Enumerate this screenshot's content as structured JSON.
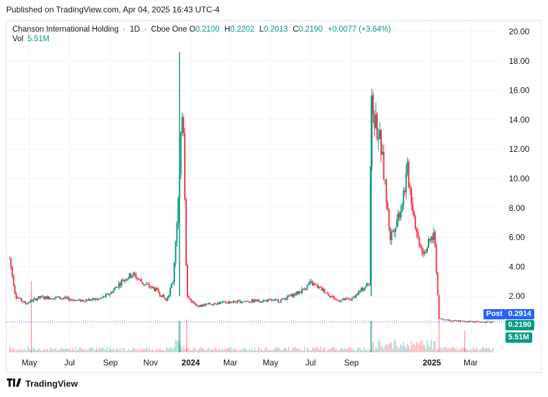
{
  "header": {
    "published": "Published on TradingView.com, Apr 04, 2025 16:43 UTC-4"
  },
  "legend": {
    "symbol": "Chanson International Holding",
    "interval": "1D",
    "exchange": "Cboe One",
    "o_label": "O",
    "o": "0.2100",
    "h_label": "H",
    "h": "0.2202",
    "l_label": "L",
    "l": "0.2013",
    "c_label": "C",
    "c": "0.2190",
    "change": "+0.0077 (+3.64%)",
    "vol_label": "Vol",
    "vol": "5.51M"
  },
  "tags": {
    "post_label": "Post",
    "post_price": "0.2914",
    "last_price": "0.2190",
    "volume": "5.51M"
  },
  "footer": {
    "brand": "TradingView",
    "logo": "tradingview-logo-icon"
  },
  "colors": {
    "up": "#089981",
    "down": "#f23645",
    "post": "#2962ff",
    "grid": "#f0f3fa",
    "text": "#131722"
  },
  "chart_data": {
    "type": "candlestick",
    "title": "Chanson International Holding · 1D · Cboe One",
    "y_ticks": [
      "2.00",
      "4.00",
      "6.00",
      "8.00",
      "10.00",
      "12.00",
      "14.00",
      "16.00",
      "18.00",
      "20.00"
    ],
    "x_ticks": [
      "May",
      "Jul",
      "Sep",
      "Nov",
      "2024",
      "Mar",
      "May",
      "Jul",
      "Sep",
      "2025",
      "Mar"
    ],
    "ylim": [
      0,
      20.5
    ],
    "grid": true,
    "price_path": [
      [
        "2023-04-03",
        4.0
      ],
      [
        "2023-04-10",
        2.0
      ],
      [
        "2023-04-25",
        1.5
      ],
      [
        "2023-05-15",
        1.9
      ],
      [
        "2023-06-15",
        1.9
      ],
      [
        "2023-07-15",
        1.7
      ],
      [
        "2023-08-15",
        1.8
      ],
      [
        "2023-09-01",
        2.2
      ],
      [
        "2023-09-20",
        3.1
      ],
      [
        "2023-10-05",
        3.5
      ],
      [
        "2023-10-20",
        2.9
      ],
      [
        "2023-11-10",
        2.4
      ],
      [
        "2023-11-25",
        1.7
      ],
      [
        "2023-12-05",
        3.0
      ],
      [
        "2023-12-15",
        10.0
      ],
      [
        "2023-12-20",
        16.0
      ],
      [
        "2023-12-26",
        2.0
      ],
      [
        "2024-01-10",
        1.3
      ],
      [
        "2024-02-01",
        1.5
      ],
      [
        "2024-03-01",
        1.6
      ],
      [
        "2024-04-15",
        1.7
      ],
      [
        "2024-05-15",
        1.7
      ],
      [
        "2024-06-15",
        2.3
      ],
      [
        "2024-07-01",
        2.9
      ],
      [
        "2024-07-20",
        2.4
      ],
      [
        "2024-08-10",
        1.7
      ],
      [
        "2024-09-01",
        1.8
      ],
      [
        "2024-09-20",
        2.6
      ],
      [
        "2024-09-28",
        2.9
      ],
      [
        "2024-10-01",
        15.0
      ],
      [
        "2024-10-15",
        12.5
      ],
      [
        "2024-10-30",
        6.0
      ],
      [
        "2024-11-15",
        8.0
      ],
      [
        "2024-11-25",
        10.5
      ],
      [
        "2024-12-10",
        6.0
      ],
      [
        "2024-12-20",
        5.0
      ],
      [
        "2025-01-05",
        6.3
      ],
      [
        "2025-01-12",
        0.5
      ],
      [
        "2025-02-01",
        0.33
      ],
      [
        "2025-03-01",
        0.28
      ],
      [
        "2025-04-04",
        0.219
      ]
    ],
    "spikes": [
      {
        "date": "2023-12-15",
        "high": 18.6
      },
      {
        "date": "2024-10-01",
        "high": 15.6
      }
    ],
    "last": {
      "open": 0.21,
      "high": 0.2202,
      "low": 0.2013,
      "close": 0.219,
      "change": 0.0077,
      "change_pct": 3.64,
      "volume": "5.51M"
    },
    "post_price": 0.2914
  }
}
